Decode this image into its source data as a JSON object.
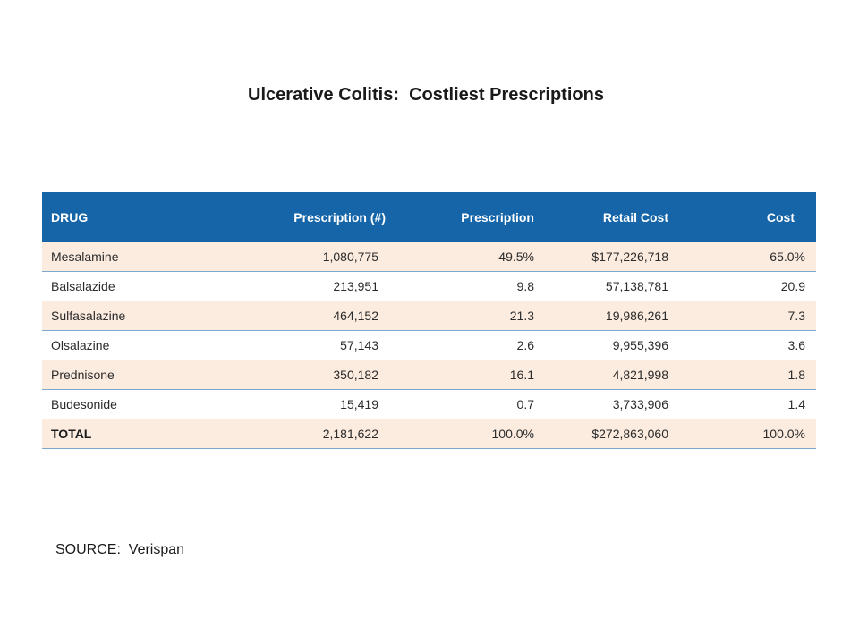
{
  "title": "Ulcerative Colitis:  Costliest Prescriptions",
  "table": {
    "headers": {
      "drug": "DRUG",
      "prescription_count": "Prescription (#)",
      "prescription_pct": "Prescription",
      "retail_cost": "Retail Cost",
      "cost_pct": "Cost"
    },
    "rows": [
      {
        "drug": "Mesalamine",
        "prescription_count": "1,080,775",
        "prescription_pct": "49.5%",
        "retail_cost": "$177,226,718",
        "cost_pct": "65.0%"
      },
      {
        "drug": "Balsalazide",
        "prescription_count": "213,951",
        "prescription_pct": "9.8",
        "retail_cost": "57,138,781",
        "cost_pct": "20.9"
      },
      {
        "drug": "Sulfasalazine",
        "prescription_count": "464,152",
        "prescription_pct": "21.3",
        "retail_cost": "19,986,261",
        "cost_pct": "7.3"
      },
      {
        "drug": "Olsalazine",
        "prescription_count": "57,143",
        "prescription_pct": "2.6",
        "retail_cost": "9,955,396",
        "cost_pct": "3.6"
      },
      {
        "drug": "Prednisone",
        "prescription_count": "350,182",
        "prescription_pct": "16.1",
        "retail_cost": "4,821,998",
        "cost_pct": "1.8"
      },
      {
        "drug": "Budesonide",
        "prescription_count": "15,419",
        "prescription_pct": "0.7",
        "retail_cost": "3,733,906",
        "cost_pct": "1.4"
      }
    ],
    "total": {
      "drug": "TOTAL",
      "prescription_count": "2,181,622",
      "prescription_pct": "100.0%",
      "retail_cost": "$272,863,060",
      "cost_pct": "100.0%"
    },
    "colors": {
      "header_bg": "#1565a8",
      "shaded_row_bg": "#fcece0",
      "row_divider": "#7fa8cf"
    }
  },
  "source": "SOURCE:  Verispan"
}
